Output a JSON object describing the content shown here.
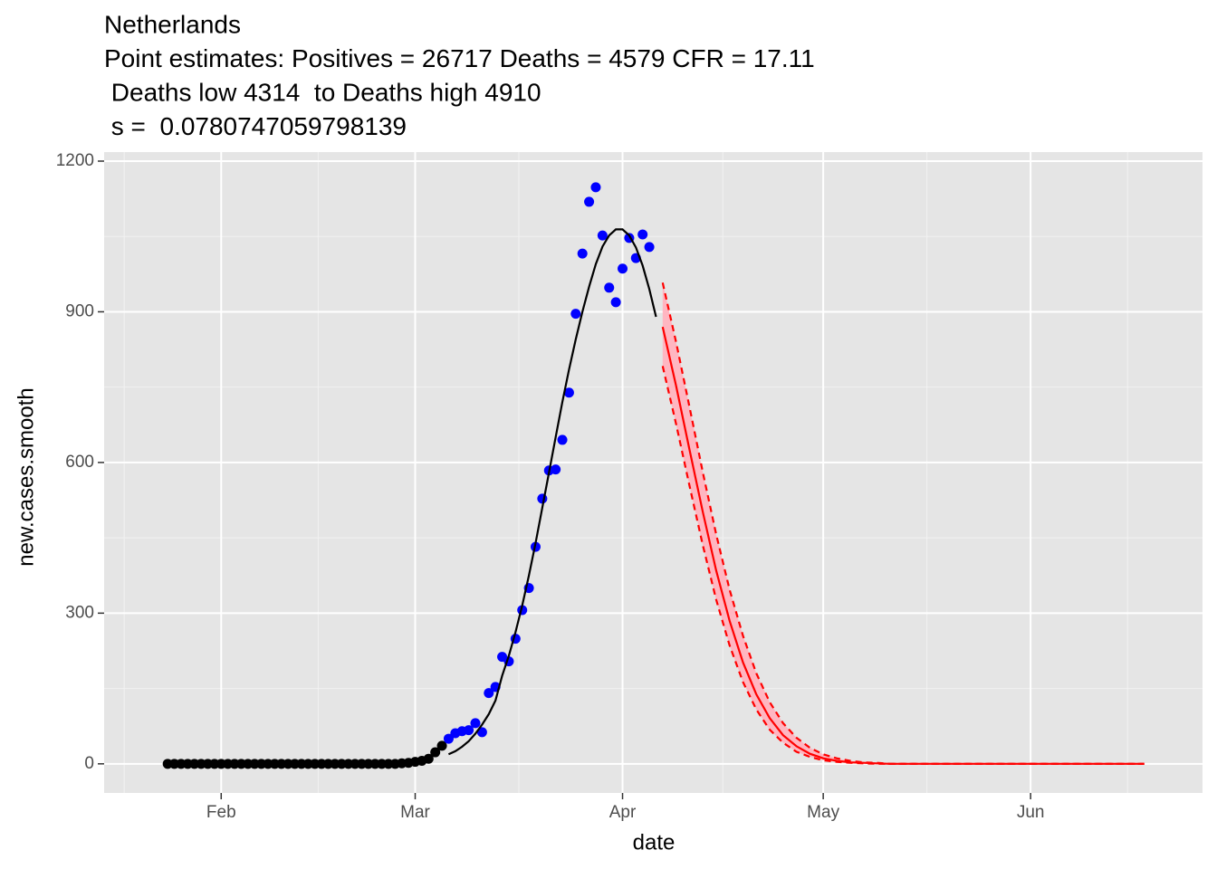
{
  "chart_data": {
    "type": "mixed",
    "title": [
      "Netherlands",
      "Point estimates: Positives = 26717 Deaths = 4579 CFR = 17.11",
      " Deaths low 4314  to Deaths high 4910",
      " s =  0.0780747059798139"
    ],
    "x_label": "date",
    "y_label": "new.cases.smooth",
    "xlim": [
      14.5,
      178.7
    ],
    "ylim": [
      -58,
      1218
    ],
    "xticks": [
      {
        "value": 32,
        "label": "Feb"
      },
      {
        "value": 61,
        "label": "Mar"
      },
      {
        "value": 92,
        "label": "Apr"
      },
      {
        "value": 122,
        "label": "May"
      },
      {
        "value": 153,
        "label": "Jun"
      }
    ],
    "yticks": [
      0,
      300,
      600,
      900,
      1200
    ],
    "grid": true,
    "background": "#e5e5e5",
    "series": [
      {
        "type": "scatter",
        "color": "#000000",
        "x": [
          24,
          25,
          26,
          27,
          28,
          29,
          30,
          31,
          32,
          33,
          34,
          35,
          36,
          37,
          38,
          39,
          40,
          41,
          42,
          43,
          44,
          45,
          46,
          47,
          48,
          49,
          50,
          51,
          52,
          53,
          54,
          55,
          56,
          57,
          58,
          59,
          60,
          61,
          62,
          63,
          64,
          65
        ],
        "values": [
          0,
          0,
          0,
          0,
          0,
          0,
          0,
          0,
          0,
          0,
          0,
          0,
          0,
          0,
          0,
          0,
          0,
          0,
          0,
          0,
          0,
          0,
          0,
          0,
          0,
          0,
          0,
          0,
          0,
          0,
          0,
          0,
          0,
          0,
          0,
          1,
          2,
          4,
          6,
          10,
          23,
          36
        ]
      },
      {
        "type": "scatter",
        "color": "#0000ff",
        "x": [
          66,
          67,
          68,
          69,
          70,
          71,
          72,
          73,
          74,
          75,
          76,
          77,
          78,
          79,
          80,
          81,
          82,
          83,
          84,
          85,
          86,
          87,
          88,
          89,
          90,
          91,
          92,
          93,
          94,
          95,
          96
        ],
        "values": [
          50,
          61,
          65,
          67,
          81,
          63,
          141,
          153,
          213,
          204,
          249,
          306,
          350,
          432,
          528,
          584,
          586,
          645,
          739,
          896,
          1016,
          1119,
          1148,
          1052,
          948,
          919,
          986,
          1047,
          1007,
          1054,
          1029
        ]
      },
      {
        "type": "line",
        "color": "#000000",
        "x": [
          66,
          67,
          68,
          69,
          70,
          71,
          72,
          73,
          74,
          75,
          76,
          77,
          78,
          79,
          80,
          81,
          82,
          83,
          84,
          85,
          86,
          87,
          88,
          89,
          90,
          91,
          92,
          93,
          94,
          95,
          96,
          97
        ],
        "values": [
          19,
          25,
          34,
          45,
          60,
          78,
          99,
          126,
          175,
          215,
          262,
          315,
          375,
          440,
          510,
          580,
          650,
          720,
          785,
          845,
          900,
          950,
          995,
          1030,
          1052,
          1064,
          1064,
          1052,
          1028,
          992,
          945,
          890
        ]
      },
      {
        "type": "band",
        "color": "#ffb6c1",
        "line_color": "#ff0000",
        "dash": true,
        "x": [
          98,
          100,
          102,
          104,
          106,
          108,
          110,
          112,
          114,
          116,
          118,
          120,
          122,
          124,
          126,
          128,
          130,
          132,
          134,
          136,
          138,
          140,
          142,
          144,
          146,
          148,
          150,
          152,
          154,
          156,
          158,
          160,
          162,
          164,
          166,
          168,
          170
        ],
        "upper": [
          958,
          840,
          711,
          580,
          457,
          347,
          255,
          180,
          123,
          81,
          52,
          32,
          19,
          11,
          6,
          3,
          2,
          0,
          0,
          0,
          0,
          0,
          0,
          0,
          0,
          0,
          0,
          0,
          0,
          0,
          0,
          0,
          0,
          0,
          0,
          0,
          0
        ],
        "lower": [
          792,
          677,
          554,
          435,
          327,
          236,
          163,
          108,
          68,
          42,
          24,
          14,
          7,
          4,
          2,
          1,
          0,
          0,
          0,
          0,
          0,
          0,
          0,
          0,
          0,
          0,
          0,
          0,
          0,
          0,
          0,
          0,
          0,
          0,
          0,
          0,
          0
        ]
      },
      {
        "type": "line",
        "color": "#ff0000",
        "x": [
          98,
          100,
          102,
          104,
          106,
          108,
          110,
          112,
          114,
          116,
          118,
          120,
          122,
          124,
          126,
          128,
          130,
          132,
          134,
          136,
          138,
          140,
          142,
          144,
          146,
          148,
          150,
          152,
          154,
          156,
          158,
          160,
          162,
          164,
          166,
          168,
          170
        ],
        "values": [
          870,
          753,
          626,
          501,
          385,
          285,
          202,
          138,
          91,
          57,
          35,
          20,
          11,
          6,
          3,
          2,
          1,
          0,
          0,
          0,
          0,
          0,
          0,
          0,
          0,
          0,
          0,
          0,
          0,
          0,
          0,
          0,
          0,
          0,
          0,
          0,
          0
        ]
      }
    ]
  }
}
